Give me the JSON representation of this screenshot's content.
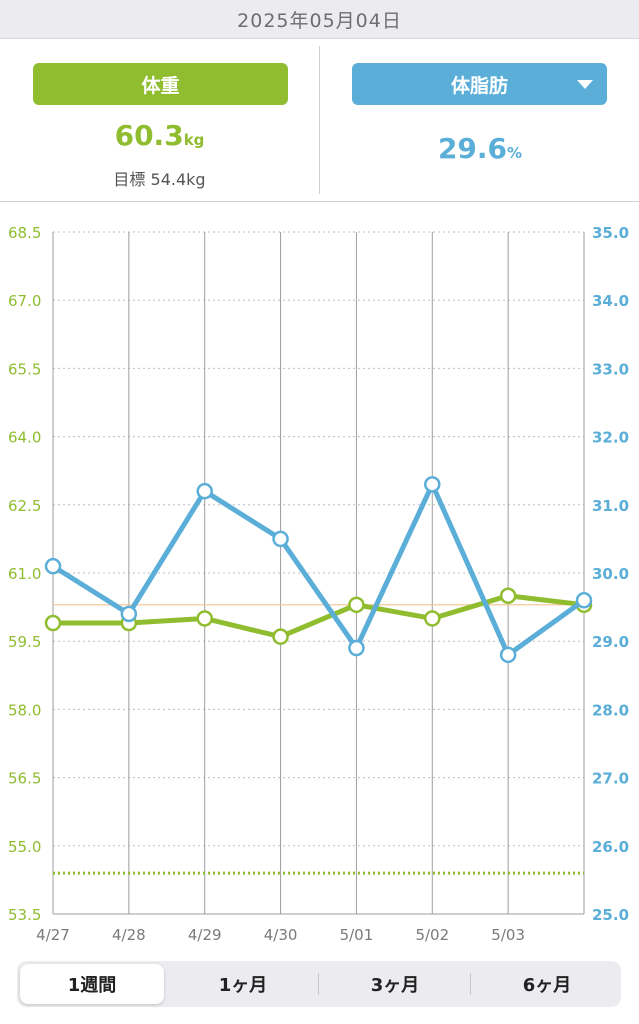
{
  "date_bar": {
    "date": "2025年05月04日"
  },
  "left_panel": {
    "label": "体重",
    "value": "60.3",
    "unit": "kg",
    "target": "目標 54.4kg"
  },
  "right_panel": {
    "label": "体脂肪",
    "value": "29.6",
    "unit": "%",
    "dropdown_icon": "caret-down-icon"
  },
  "colors": {
    "weight": "#8fbd2f",
    "fat": "#5aaed8",
    "goal_line": "#f2c48d"
  },
  "range_tabs": [
    {
      "label": "1週間",
      "active": true
    },
    {
      "label": "1ヶ月",
      "active": false
    },
    {
      "label": "3ヶ月",
      "active": false
    },
    {
      "label": "6ヶ月",
      "active": false
    }
  ],
  "chart_data": {
    "type": "line",
    "x": [
      "4/27",
      "4/28",
      "4/29",
      "4/30",
      "5/01",
      "5/02",
      "5/03",
      "5/04"
    ],
    "x_tick_labels": [
      "4/27",
      "4/28",
      "4/29",
      "4/30",
      "5/01",
      "5/02",
      "5/03"
    ],
    "left_axis": {
      "ticks": [
        "68.5",
        "67.0",
        "65.5",
        "64.0",
        "62.5",
        "61.0",
        "59.5",
        "58.0",
        "56.5",
        "55.0",
        "53.5"
      ],
      "ylim": [
        53.5,
        68.5
      ]
    },
    "right_axis": {
      "ticks": [
        "35.0",
        "34.0",
        "33.0",
        "32.0",
        "31.0",
        "30.0",
        "29.0",
        "28.0",
        "27.0",
        "26.0",
        "25.0"
      ],
      "ylim": [
        25.0,
        35.0
      ]
    },
    "series": [
      {
        "axis": "left",
        "color": "#8fbd2f",
        "values": [
          59.9,
          59.9,
          60.0,
          59.6,
          60.3,
          60.0,
          60.5,
          60.3
        ]
      },
      {
        "axis": "right",
        "color": "#5aaed8",
        "values": [
          30.1,
          29.4,
          31.2,
          30.5,
          28.9,
          31.3,
          28.8,
          29.6
        ]
      }
    ],
    "reference_lines": [
      {
        "axis": "left",
        "value": 60.3,
        "style": "solid",
        "color": "#f2c48d"
      },
      {
        "axis": "left",
        "value": 54.4,
        "style": "dotted",
        "color": "#8fbd2f"
      }
    ],
    "grid": true
  }
}
